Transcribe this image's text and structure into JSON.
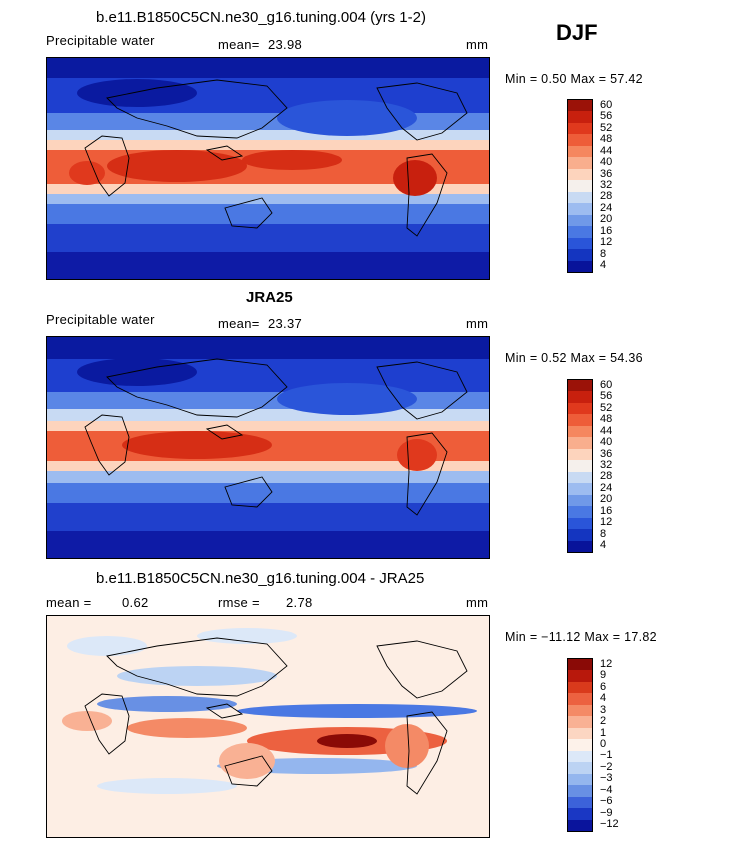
{
  "season": "DJF",
  "panels": [
    {
      "title": "b.e11.B1850C5CN.ne30_g16.tuning.004 (yrs 1-2)",
      "variable": "Precipitable water",
      "stat_label": "mean=",
      "stat_value": "23.98",
      "units": "mm",
      "minmax": "Min =   0.50 Max =  57.42",
      "colorbar_labels": [
        "60",
        "56",
        "52",
        "48",
        "44",
        "40",
        "36",
        "32",
        "28",
        "24",
        "20",
        "16",
        "12",
        "8",
        "4"
      ],
      "colorbar_colors": [
        "#9b1208",
        "#c8200e",
        "#e0391d",
        "#ee5d39",
        "#f5875f",
        "#f9ae8d",
        "#fdd4bd",
        "#f5f0ec",
        "#c8daf3",
        "#9dbcf0",
        "#7099e8",
        "#4a78e3",
        "#2a55d9",
        "#1435c0",
        "#08139a"
      ]
    },
    {
      "title": "JRA25",
      "variable": "Precipitable water",
      "stat_label": "mean=",
      "stat_value": "23.37",
      "units": "mm",
      "minmax": "Min =   0.52 Max =  54.36",
      "colorbar_labels": [
        "60",
        "56",
        "52",
        "48",
        "44",
        "40",
        "36",
        "32",
        "28",
        "24",
        "20",
        "16",
        "12",
        "8",
        "4"
      ],
      "colorbar_colors": [
        "#9b1208",
        "#c8200e",
        "#e0391d",
        "#ee5d39",
        "#f5875f",
        "#f9ae8d",
        "#fdd4bd",
        "#f5f0ec",
        "#c8daf3",
        "#9dbcf0",
        "#7099e8",
        "#4a78e3",
        "#2a55d9",
        "#1435c0",
        "#08139a"
      ]
    },
    {
      "title": "b.e11.B1850C5CN.ne30_g16.tuning.004 - JRA25",
      "stat_label": "mean =",
      "stat_value": "0.62",
      "stat2_label": "rmse =",
      "stat2_value": "2.78",
      "units": "mm",
      "minmax": "Min = −11.12 Max =  17.82",
      "colorbar_labels": [
        "12",
        "9",
        "6",
        "4",
        "3",
        "2",
        "1",
        "0",
        "−1",
        "−2",
        "−3",
        "−4",
        "−6",
        "−9",
        "−12"
      ],
      "colorbar_colors": [
        "#8a0a06",
        "#b8180c",
        "#d93a1c",
        "#ec6140",
        "#f48a66",
        "#f9b194",
        "#fcd6c2",
        "#fdf2ea",
        "#dce8f8",
        "#bcd3f3",
        "#94b6ee",
        "#6890e4",
        "#3c62da",
        "#1a37c4",
        "#0a149c"
      ]
    }
  ]
}
